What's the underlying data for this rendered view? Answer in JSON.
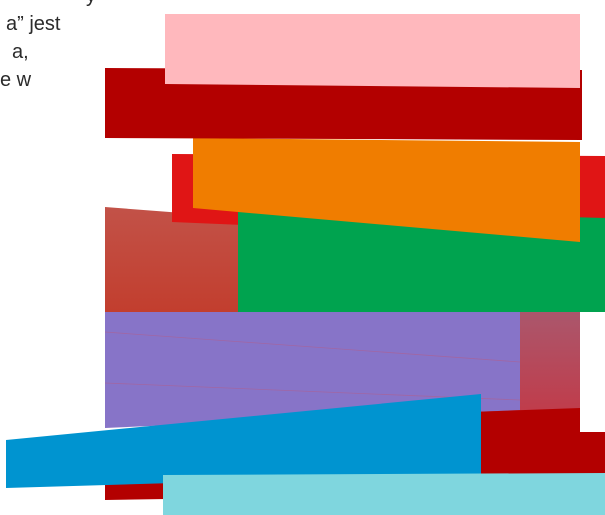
{
  "text_fragment": {
    "lines": [
      "y",
      "a” jest",
      "a,",
      "e w"
    ]
  },
  "collage": {
    "colors": {
      "pink": "#ffb8bd",
      "dark_red": "#b30000",
      "bright_red": "#e01515",
      "orange": "#f07d00",
      "brick": "#c14a3c",
      "green": "#00a34f",
      "purple": "#8774c8",
      "rose": "#b0506a",
      "blue": "#0094d0",
      "cyan": "#7fd6de"
    }
  }
}
